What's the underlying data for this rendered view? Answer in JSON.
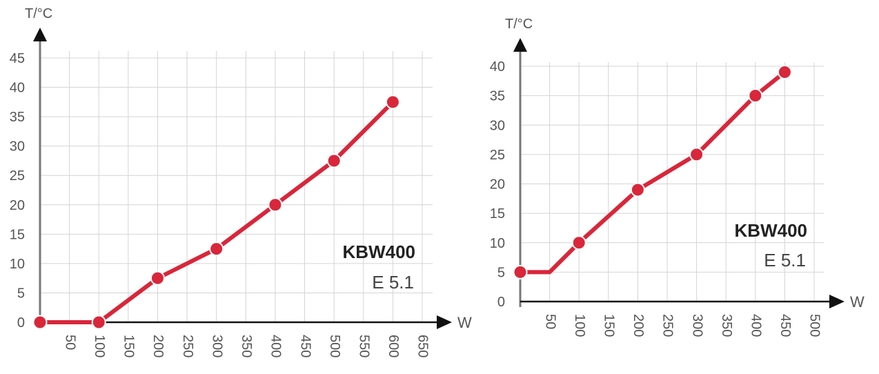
{
  "colors": {
    "series": "#d9263a",
    "grid": "#d4d4d4",
    "axis": "#111111",
    "tick_text": "#555555"
  },
  "chart_data": [
    {
      "type": "line",
      "title": "KBW400",
      "subtitle": "E 5.1",
      "xlabel": "W",
      "ylabel": "T/°C",
      "xlim": [
        0,
        650
      ],
      "ylim": [
        0,
        45
      ],
      "x_ticks": [
        "50",
        "100",
        "150",
        "200",
        "250",
        "300",
        "350",
        "400",
        "450",
        "500",
        "550",
        "600",
        "650"
      ],
      "y_ticks": [
        "0",
        "5",
        "10",
        "15",
        "20",
        "25",
        "30",
        "35",
        "40",
        "45"
      ],
      "grid": true,
      "series": [
        {
          "x": [
            0,
            100,
            200,
            300,
            400,
            500,
            600
          ],
          "values": [
            0,
            0,
            7.5,
            12.5,
            20,
            27.5,
            37.5
          ],
          "marked": [
            true,
            true,
            true,
            true,
            true,
            true,
            true
          ]
        }
      ]
    },
    {
      "type": "line",
      "title": "KBW400",
      "subtitle": "E 5.1",
      "xlabel": "W",
      "ylabel": "T/°C",
      "xlim": [
        0,
        500
      ],
      "ylim": [
        0,
        40
      ],
      "x_ticks": [
        "50",
        "100",
        "150",
        "200",
        "250",
        "300",
        "350",
        "400",
        "450",
        "500"
      ],
      "y_ticks": [
        "0",
        "5",
        "10",
        "15",
        "20",
        "25",
        "30",
        "35",
        "40"
      ],
      "grid": true,
      "series": [
        {
          "x": [
            0,
            50,
            100,
            200,
            300,
            400,
            450
          ],
          "values": [
            5,
            5,
            10,
            19,
            25,
            35,
            39
          ],
          "marked": [
            true,
            false,
            true,
            true,
            true,
            true,
            true
          ]
        }
      ]
    }
  ]
}
